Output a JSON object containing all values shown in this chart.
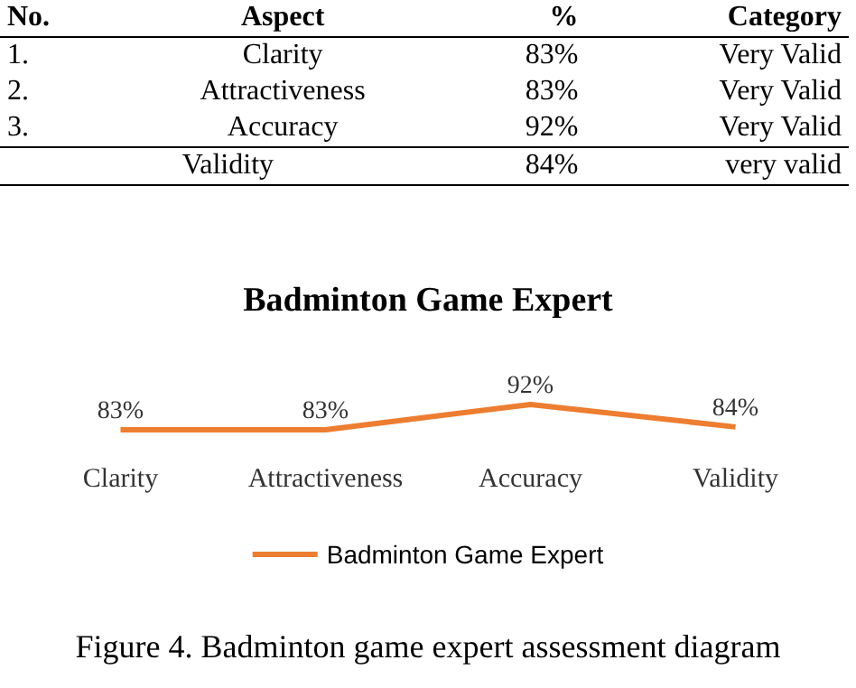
{
  "chart_data": [
    {
      "type": "other",
      "annotations": [
        "No.",
        "Aspect",
        "%",
        "Category",
        "1.",
        "Clarity",
        "83%",
        "Very Valid",
        "2.",
        "Attractiveness",
        "83%",
        "Very Valid",
        "3.",
        "Accuracy",
        "92%",
        "Very Valid",
        "Validity",
        "84%",
        "very valid"
      ]
    },
    {
      "type": "line",
      "title": "Badminton Game Expert",
      "categories": [
        "Clarity",
        "Attractiveness",
        "Accuracy",
        "Validity"
      ],
      "series": [
        {
          "name": "Badminton Game Expert",
          "color": "#ed7d31",
          "values": [
            83,
            83,
            92,
            84
          ],
          "value_labels": [
            "83%",
            "83%",
            "92%",
            "84%"
          ]
        }
      ],
      "marker": "none",
      "grid": false,
      "legend": "bottom",
      "annotations": [
        "Figure 4. Badminton game expert assessment diagram"
      ]
    }
  ]
}
